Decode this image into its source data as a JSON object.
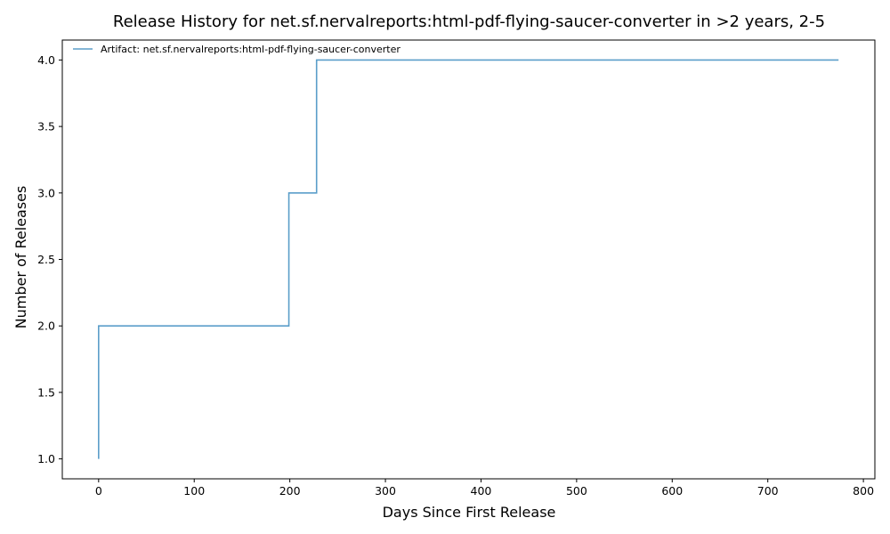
{
  "chart_data": {
    "type": "line",
    "title": "Release History for net.sf.nervalreports:html-pdf-flying-saucer-converter in >2 years, 2-5",
    "xlabel": "Days Since First Release",
    "ylabel": "Number of Releases",
    "xlim": [
      -38,
      812
    ],
    "ylim": [
      0.85,
      4.15
    ],
    "xticks": [
      0,
      100,
      200,
      300,
      400,
      500,
      600,
      700,
      800
    ],
    "yticks": [
      1.0,
      1.5,
      2.0,
      2.5,
      3.0,
      3.5,
      4.0
    ],
    "step": "post",
    "grid": false,
    "legend_position": "top-left",
    "series": [
      {
        "name": "Artifact: net.sf.nervalreports:html-pdf-flying-saucer-converter",
        "color": "#5b9ec9",
        "x": [
          0,
          0,
          199,
          228,
          774
        ],
        "y": [
          1,
          2,
          3,
          4,
          4
        ]
      }
    ]
  }
}
